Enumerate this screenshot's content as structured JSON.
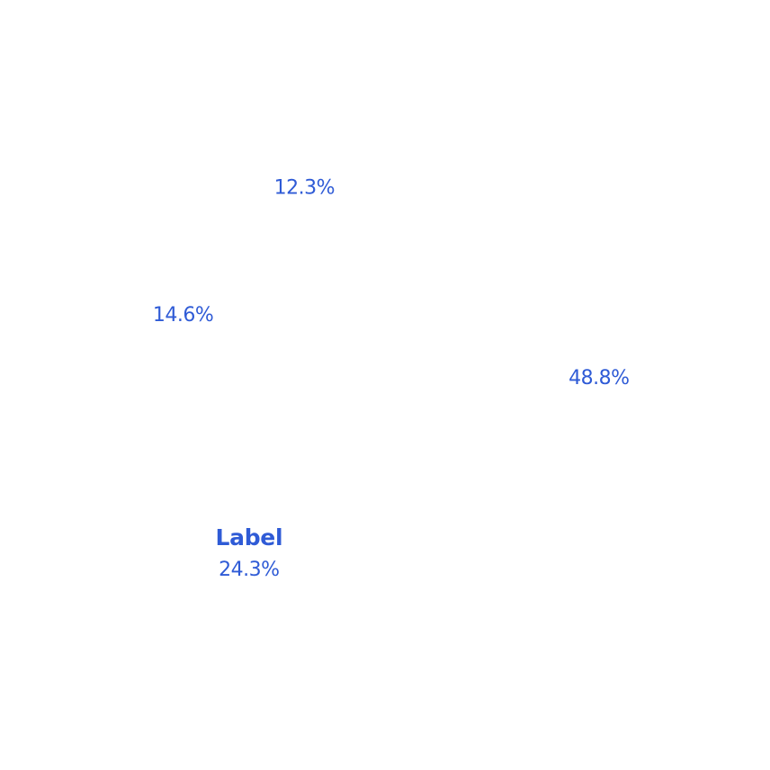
{
  "chart_data": {
    "type": "pie",
    "values": [
      48.8,
      24.3,
      14.6,
      12.3
    ],
    "labels": [
      "48.8%",
      "24.3%",
      "14.6%",
      "12.3%"
    ],
    "annotations": [
      {
        "slice": 1,
        "text": "Label"
      }
    ],
    "slice_fill": "#ffffff",
    "label_color": "#2f5bd6",
    "legend": "none"
  }
}
